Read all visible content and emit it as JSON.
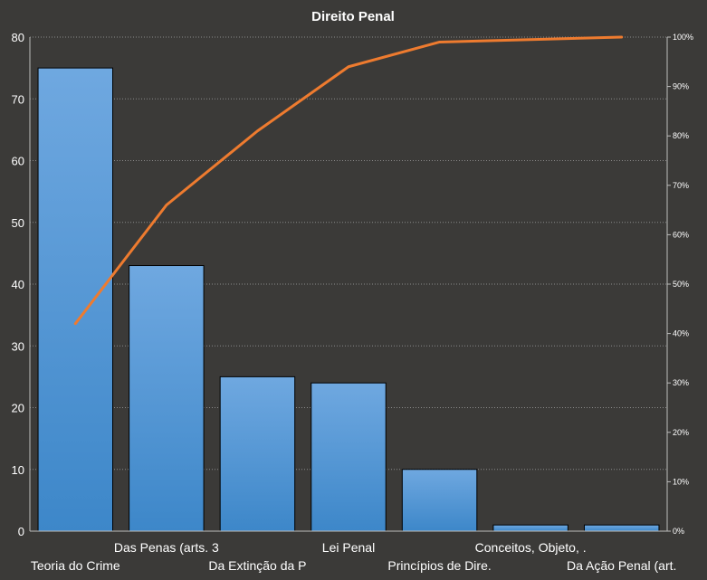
{
  "chart_data": {
    "type": "bar",
    "title": "Direito  Penal",
    "categories": [
      "Teoria do Crime",
      "Das Penas (arts. 3",
      "Da Extinção da P",
      "Lei Penal",
      "Princípios de Dire.",
      "Conceitos, Objeto, .",
      "Da Ação Penal (art."
    ],
    "series": [
      {
        "type": "bar",
        "values": [
          75,
          43,
          25,
          24,
          10,
          1,
          1
        ]
      },
      {
        "type": "line",
        "axis": "right",
        "values": [
          42,
          66,
          81,
          94,
          99,
          99.5,
          100
        ]
      }
    ],
    "ylim": [
      0,
      80
    ],
    "y_ticks": [
      "0",
      "10",
      "20",
      "30",
      "40",
      "50",
      "60",
      "70",
      "80"
    ],
    "y2lim": [
      0,
      100
    ],
    "y2_ticks": [
      "0%",
      "10%",
      "20%",
      "30%",
      "40%",
      "50%",
      "60%",
      "70%",
      "80%",
      "90%",
      "100%"
    ],
    "grid": true,
    "colors": {
      "bar_top": "#6fa8e0",
      "bar_bottom": "#3d87c9",
      "line": "#ee7b2f",
      "background": "#3b3a38"
    }
  }
}
